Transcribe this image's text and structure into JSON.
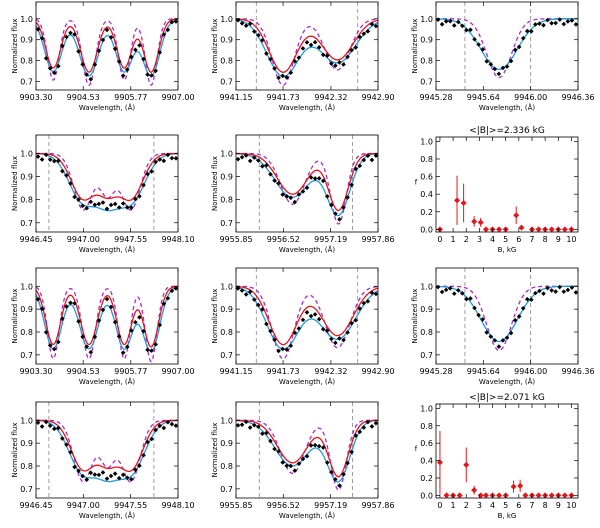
{
  "figure": {
    "description_free": true,
    "colors": {
      "observed": "#000000",
      "model_red": "#e8141c",
      "model_blue": "#1e9bdc",
      "model_purple": "#a62ec6",
      "errorbars": "#e8141c",
      "boundary": "#888888"
    }
  },
  "chart_data": [
    {
      "type": "line",
      "id": "r1c1",
      "xlabel": "Wavelength, (Å)",
      "ylabel": "Normalized flux",
      "xlim": [
        9903.3,
        9907.0
      ],
      "ylim": [
        0.66,
        1.08
      ],
      "xticks": [
        "9903.30",
        "9904.53",
        "9905.77",
        "9907.00"
      ],
      "yticks": [
        "0.7",
        "0.8",
        "0.9",
        "1.0"
      ],
      "boundaries": [],
      "lines": [
        {
          "c": 9903.75,
          "d": 0.24,
          "w": 0.18
        },
        {
          "c": 9904.68,
          "d": 0.26,
          "w": 0.2
        },
        {
          "c": 9905.6,
          "d": 0.24,
          "w": 0.18
        },
        {
          "c": 9906.3,
          "d": 0.26,
          "w": 0.18
        }
      ],
      "series": [
        "observed",
        "red",
        "blue",
        "purple"
      ]
    },
    {
      "type": "line",
      "id": "r1c2",
      "xlabel": "Wavelength, (Å)",
      "ylabel": "Normalized flux",
      "xlim": [
        9941.15,
        9942.9
      ],
      "ylim": [
        0.66,
        1.08
      ],
      "xticks": [
        "9941.15",
        "9941.73",
        "9942.32",
        "9942.90"
      ],
      "yticks": [
        "0.7",
        "0.8",
        "0.9",
        "1.0"
      ],
      "boundaries": [
        9941.4,
        9942.65
      ],
      "lines": [
        {
          "c": 9941.73,
          "d": 0.26,
          "w": 0.16
        },
        {
          "c": 9942.4,
          "d": 0.2,
          "w": 0.18
        }
      ],
      "series": [
        "observed",
        "red",
        "blue",
        "purple"
      ]
    },
    {
      "type": "line",
      "id": "r1c3",
      "xlabel": "Wavelength, (Å)",
      "ylabel": "Normalized flux",
      "xlim": [
        9945.28,
        9946.36
      ],
      "ylim": [
        0.66,
        1.08
      ],
      "xticks": [
        "9945.28",
        "9945.64",
        "9946.00",
        "9946.36"
      ],
      "yticks": [
        "0.7",
        "0.8",
        "0.9",
        "1.0"
      ],
      "boundaries": [
        9945.5,
        9946.0
      ],
      "lines": [
        {
          "c": 9945.76,
          "d": 0.23,
          "w": 0.11
        }
      ],
      "series": [
        "observed",
        "blue",
        "purple"
      ]
    },
    {
      "type": "line",
      "id": "r2c1",
      "xlabel": "Wavelength, (Å)",
      "ylabel": "Normalized flux",
      "xlim": [
        9946.45,
        9948.1
      ],
      "ylim": [
        0.66,
        1.08
      ],
      "xticks": [
        "9946.45",
        "9947.00",
        "9947.55",
        "9948.10"
      ],
      "yticks": [
        "0.7",
        "0.8",
        "0.9",
        "1.0"
      ],
      "boundaries": [
        9946.6,
        9947.82
      ],
      "lines": [
        {
          "c": 9947.0,
          "d": 0.2,
          "w": 0.13
        },
        {
          "c": 9947.55,
          "d": 0.2,
          "w": 0.13
        },
        {
          "c": 9947.28,
          "d": 0.14,
          "w": 0.1
        }
      ],
      "series": [
        "observed",
        "red",
        "blue",
        "purple"
      ]
    },
    {
      "type": "line",
      "id": "r2c2",
      "xlabel": "Wavelength, (Å)",
      "ylabel": "Normalized flux",
      "xlim": [
        9955.85,
        9957.86
      ],
      "ylim": [
        0.66,
        1.08
      ],
      "xticks": [
        "9955.85",
        "9956.52",
        "9957.19",
        "9957.86"
      ],
      "yticks": [
        "0.7",
        "0.8",
        "0.9",
        "1.0"
      ],
      "boundaries": [
        9956.18,
        9957.5
      ],
      "lines": [
        {
          "c": 9956.65,
          "d": 0.18,
          "w": 0.2
        },
        {
          "c": 9957.3,
          "d": 0.25,
          "w": 0.13
        }
      ],
      "series": [
        "observed",
        "red",
        "blue",
        "purple"
      ]
    },
    {
      "type": "errorbar",
      "id": "r2c3",
      "title": "<|B|>=2.336 kG",
      "xlabel": "B, kG",
      "ylabel": "f",
      "xlim": [
        -0.3,
        10.5
      ],
      "ylim": [
        -0.03,
        1.05
      ],
      "xticks": [
        "0",
        "1",
        "2",
        "3",
        "4",
        "5",
        "6",
        "7",
        "8",
        "9",
        "10"
      ],
      "yticks": [
        "0.0",
        "0.2",
        "0.4",
        "0.6",
        "0.8",
        "1.0"
      ],
      "points": [
        {
          "x": 0.0,
          "y": 0.0,
          "err": 0.0
        },
        {
          "x": 1.3,
          "y": 0.33,
          "err": 0.28
        },
        {
          "x": 1.8,
          "y": 0.3,
          "err": 0.22
        },
        {
          "x": 2.6,
          "y": 0.09,
          "err": 0.06
        },
        {
          "x": 3.1,
          "y": 0.08,
          "err": 0.05
        },
        {
          "x": 3.5,
          "y": 0.0,
          "err": 0.0
        },
        {
          "x": 4.0,
          "y": 0.0,
          "err": 0.0
        },
        {
          "x": 4.5,
          "y": 0.0,
          "err": 0.0
        },
        {
          "x": 5.0,
          "y": 0.0,
          "err": 0.0
        },
        {
          "x": 5.8,
          "y": 0.16,
          "err": 0.1
        },
        {
          "x": 6.2,
          "y": 0.02,
          "err": 0.02
        },
        {
          "x": 7.0,
          "y": 0.0,
          "err": 0.0
        },
        {
          "x": 7.5,
          "y": 0.0,
          "err": 0.0
        },
        {
          "x": 8.0,
          "y": 0.0,
          "err": 0.0
        },
        {
          "x": 8.5,
          "y": 0.0,
          "err": 0.0
        },
        {
          "x": 9.0,
          "y": 0.0,
          "err": 0.0
        },
        {
          "x": 9.5,
          "y": 0.0,
          "err": 0.0
        },
        {
          "x": 10.0,
          "y": 0.0,
          "err": 0.0
        }
      ]
    },
    {
      "type": "line",
      "id": "r3c1",
      "xlabel": "Wavelength, (Å)",
      "ylabel": "Normalized flux",
      "xlim": [
        9903.3,
        9907.0
      ],
      "ylim": [
        0.66,
        1.08
      ],
      "xticks": [
        "9903.30",
        "9904.53",
        "9905.77",
        "9907.00"
      ],
      "yticks": [
        "0.7",
        "0.8",
        "0.9",
        "1.0"
      ],
      "boundaries": [],
      "lines": [
        {
          "c": 9903.75,
          "d": 0.26,
          "w": 0.18
        },
        {
          "c": 9904.68,
          "d": 0.26,
          "w": 0.2
        },
        {
          "c": 9905.6,
          "d": 0.26,
          "w": 0.18
        },
        {
          "c": 9906.3,
          "d": 0.27,
          "w": 0.18
        }
      ],
      "series": [
        "observed",
        "red",
        "blue",
        "purple"
      ]
    },
    {
      "type": "line",
      "id": "r3c2",
      "xlabel": "Wavelength, (Å)",
      "ylabel": "Normalized flux",
      "xlim": [
        9941.15,
        9942.9
      ],
      "ylim": [
        0.66,
        1.08
      ],
      "xticks": [
        "9941.15",
        "9941.73",
        "9942.32",
        "9942.90"
      ],
      "yticks": [
        "0.7",
        "0.8",
        "0.9",
        "1.0"
      ],
      "boundaries": [
        9941.4,
        9942.65
      ],
      "lines": [
        {
          "c": 9941.73,
          "d": 0.26,
          "w": 0.16
        },
        {
          "c": 9942.4,
          "d": 0.22,
          "w": 0.18
        }
      ],
      "series": [
        "observed",
        "red",
        "blue",
        "purple"
      ]
    },
    {
      "type": "line",
      "id": "r3c3",
      "xlabel": "Wavelength, (Å)",
      "ylabel": "Normalized flux",
      "xlim": [
        9945.28,
        9946.36
      ],
      "ylim": [
        0.66,
        1.08
      ],
      "xticks": [
        "9945.28",
        "9945.64",
        "9946.00",
        "9946.36"
      ],
      "yticks": [
        "0.7",
        "0.8",
        "0.9",
        "1.0"
      ],
      "boundaries": [
        9945.5,
        9946.0
      ],
      "lines": [
        {
          "c": 9945.76,
          "d": 0.23,
          "w": 0.11
        }
      ],
      "series": [
        "observed",
        "blue",
        "purple"
      ]
    },
    {
      "type": "line",
      "id": "r4c1",
      "xlabel": "Wavelength, (Å)",
      "ylabel": "Normalized flux",
      "xlim": [
        9946.45,
        9948.1
      ],
      "ylim": [
        0.66,
        1.08
      ],
      "xticks": [
        "9946.45",
        "9947.00",
        "9947.55",
        "9948.10"
      ],
      "yticks": [
        "0.7",
        "0.8",
        "0.9",
        "1.0"
      ],
      "boundaries": [
        9946.6,
        9947.82
      ],
      "lines": [
        {
          "c": 9947.0,
          "d": 0.22,
          "w": 0.13
        },
        {
          "c": 9947.55,
          "d": 0.22,
          "w": 0.13
        },
        {
          "c": 9947.28,
          "d": 0.15,
          "w": 0.1
        }
      ],
      "series": [
        "observed",
        "red",
        "blue",
        "purple"
      ]
    },
    {
      "type": "line",
      "id": "r4c2",
      "xlabel": "Wavelength, (Å)",
      "ylabel": "Normalized flux",
      "xlim": [
        9955.85,
        9957.86
      ],
      "ylim": [
        0.66,
        1.08
      ],
      "xticks": [
        "9955.85",
        "9956.52",
        "9957.19",
        "9957.86"
      ],
      "yticks": [
        "0.7",
        "0.8",
        "0.9",
        "1.0"
      ],
      "boundaries": [
        9956.18,
        9957.5
      ],
      "lines": [
        {
          "c": 9956.65,
          "d": 0.19,
          "w": 0.2
        },
        {
          "c": 9957.3,
          "d": 0.25,
          "w": 0.13
        }
      ],
      "series": [
        "observed",
        "red",
        "blue",
        "purple"
      ]
    },
    {
      "type": "errorbar",
      "id": "r4c3",
      "title": "<|B|>=2.071 kG",
      "xlabel": "B, kG",
      "ylabel": "f",
      "xlim": [
        -0.3,
        10.5
      ],
      "ylim": [
        -0.03,
        1.05
      ],
      "xticks": [
        "0",
        "1",
        "2",
        "3",
        "4",
        "5",
        "6",
        "7",
        "8",
        "9",
        "10"
      ],
      "yticks": [
        "0.0",
        "0.2",
        "0.4",
        "0.6",
        "0.8",
        "1.0"
      ],
      "points": [
        {
          "x": 0.0,
          "y": 0.38,
          "err": 0.36
        },
        {
          "x": 0.5,
          "y": 0.0,
          "err": 0.0
        },
        {
          "x": 1.0,
          "y": 0.0,
          "err": 0.0
        },
        {
          "x": 1.5,
          "y": 0.0,
          "err": 0.0
        },
        {
          "x": 2.0,
          "y": 0.35,
          "err": 0.2
        },
        {
          "x": 2.6,
          "y": 0.06,
          "err": 0.05
        },
        {
          "x": 3.1,
          "y": 0.0,
          "err": 0.0
        },
        {
          "x": 3.5,
          "y": 0.0,
          "err": 0.0
        },
        {
          "x": 4.0,
          "y": 0.0,
          "err": 0.0
        },
        {
          "x": 4.5,
          "y": 0.0,
          "err": 0.0
        },
        {
          "x": 5.0,
          "y": 0.0,
          "err": 0.0
        },
        {
          "x": 5.6,
          "y": 0.1,
          "err": 0.07
        },
        {
          "x": 6.1,
          "y": 0.11,
          "err": 0.07
        },
        {
          "x": 6.5,
          "y": 0.0,
          "err": 0.0
        },
        {
          "x": 7.0,
          "y": 0.0,
          "err": 0.0
        },
        {
          "x": 7.5,
          "y": 0.0,
          "err": 0.0
        },
        {
          "x": 8.0,
          "y": 0.0,
          "err": 0.0
        },
        {
          "x": 8.5,
          "y": 0.0,
          "err": 0.0
        },
        {
          "x": 9.0,
          "y": 0.0,
          "err": 0.0
        },
        {
          "x": 9.5,
          "y": 0.0,
          "err": 0.0
        },
        {
          "x": 10.0,
          "y": 0.0,
          "err": 0.0
        }
      ]
    }
  ]
}
